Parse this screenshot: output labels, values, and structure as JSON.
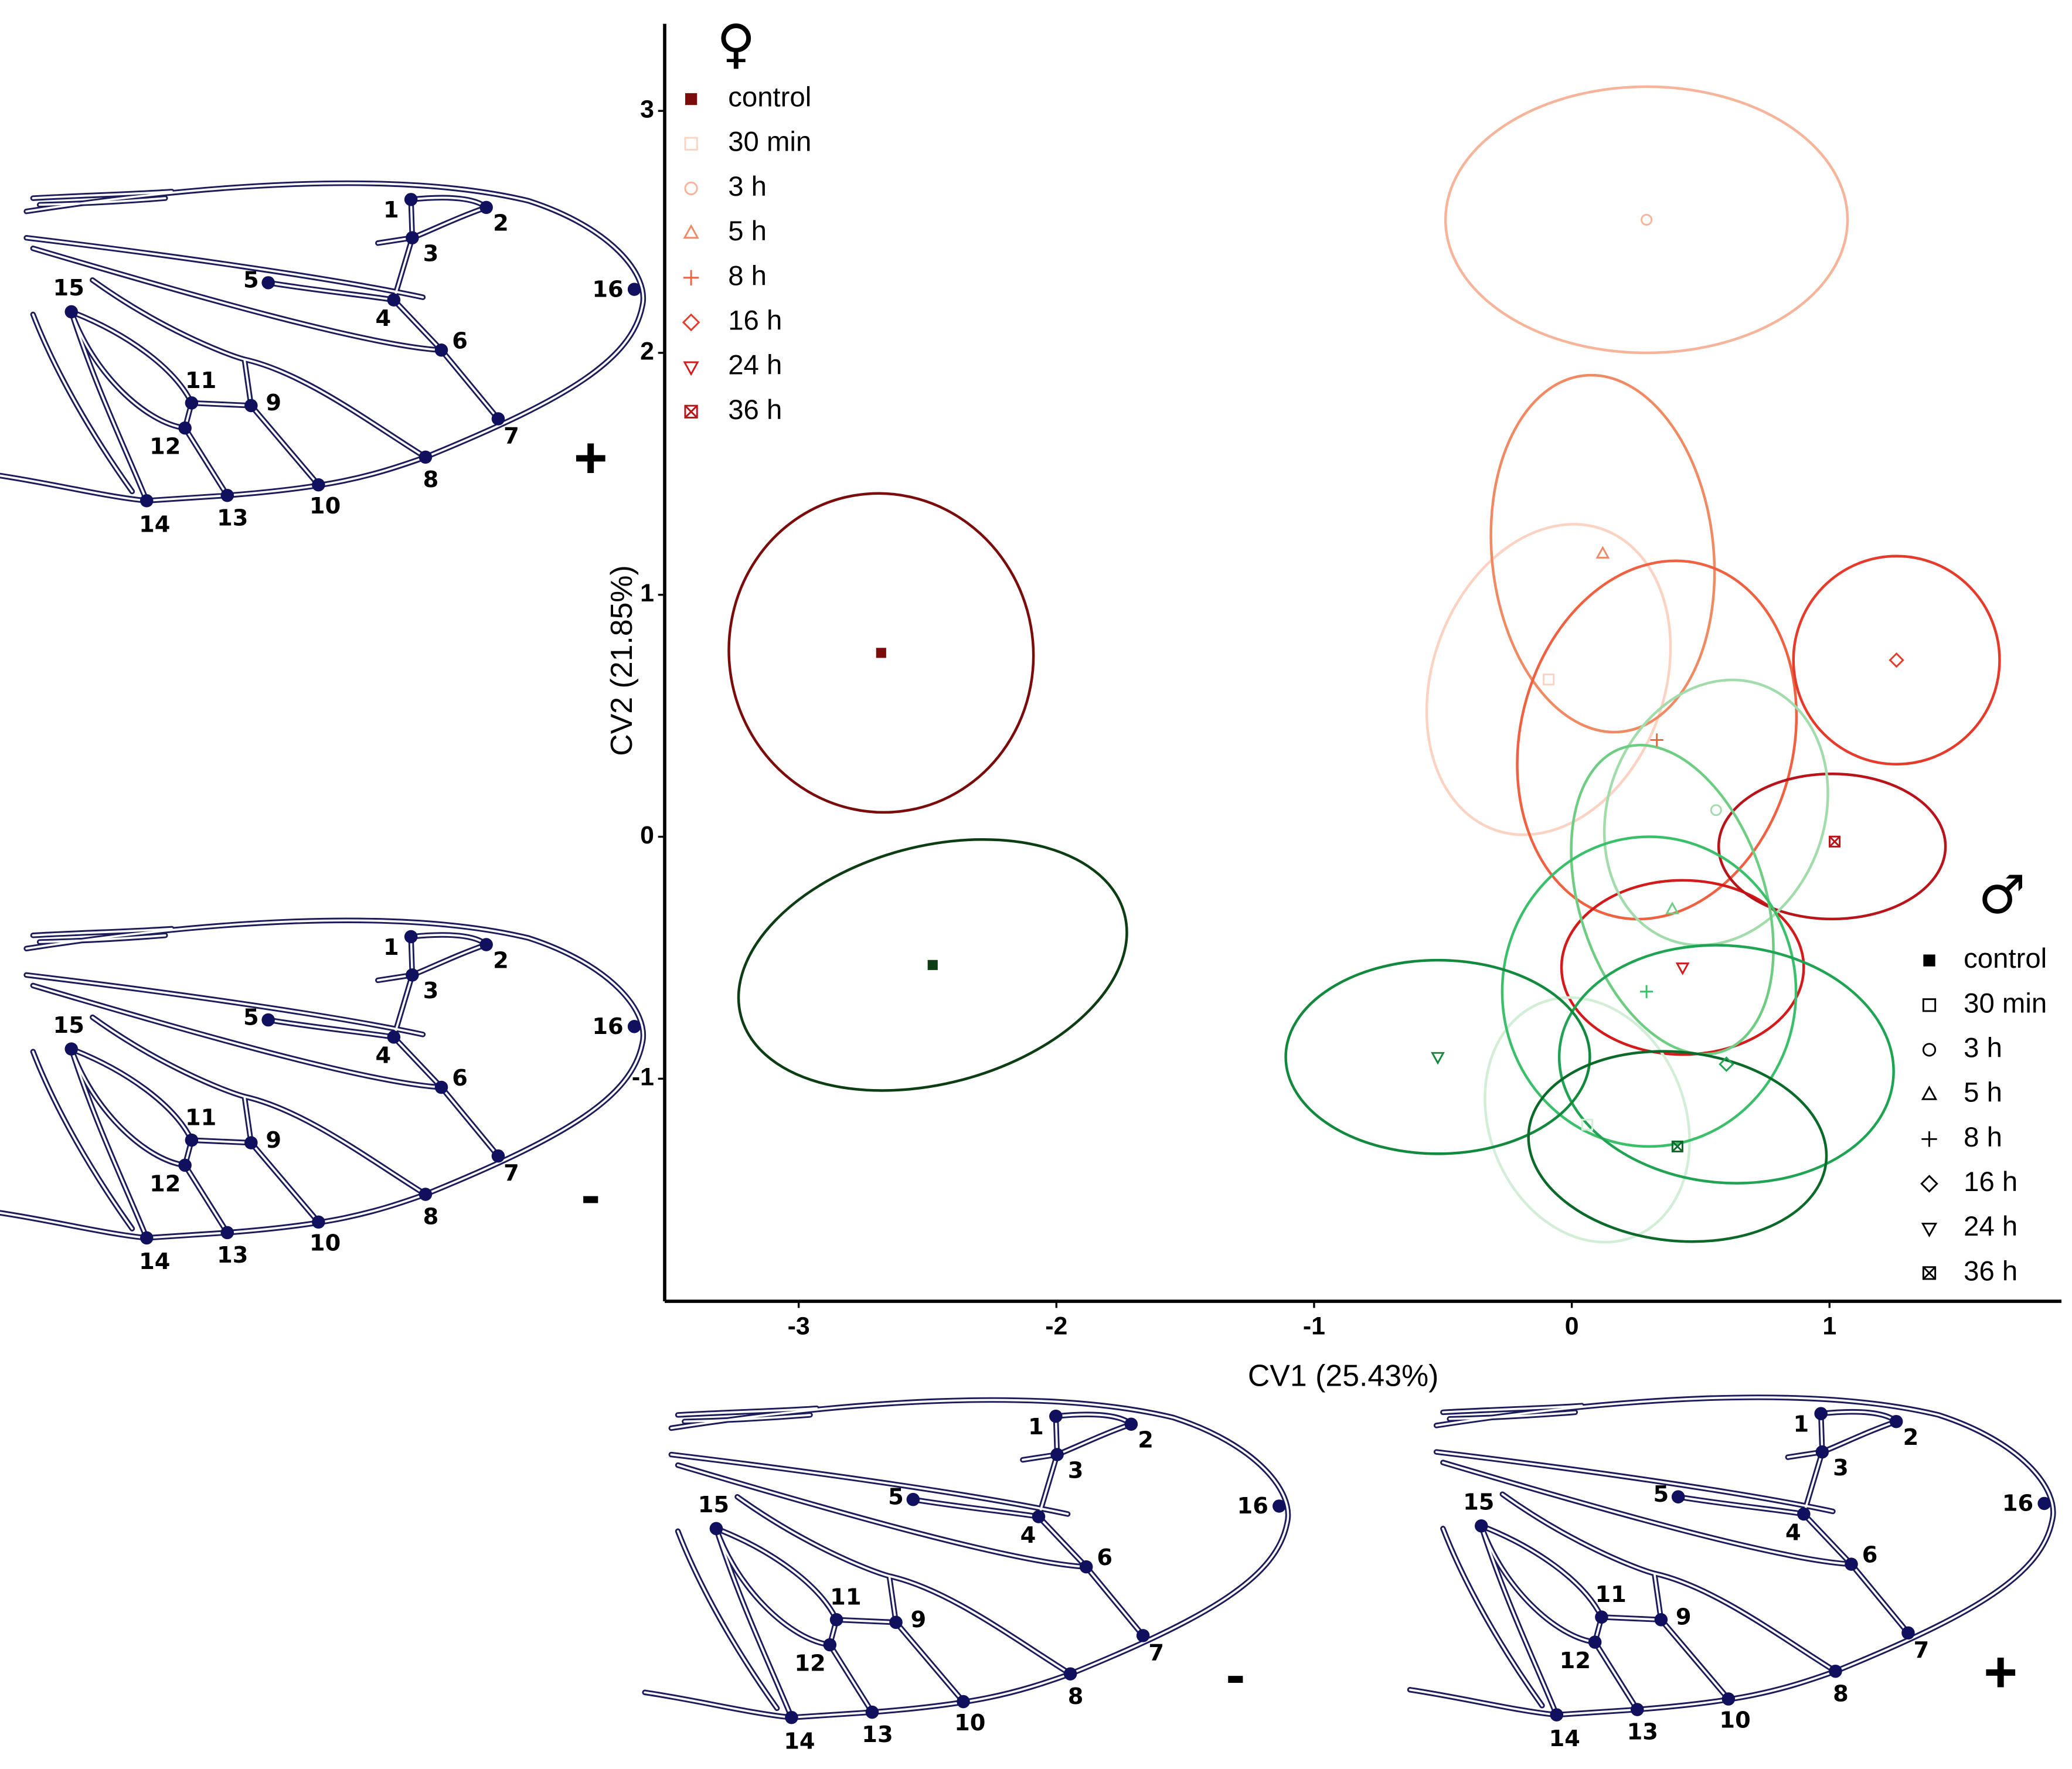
{
  "chart_data": {
    "type": "scatter",
    "x_label": "CV1 (25.43%)",
    "y_label": "CV2 (21.85%)",
    "xlim": [
      -3.52,
      1.9
    ],
    "ylim": [
      -1.92,
      3.36
    ],
    "xticks": [
      -3,
      -2,
      -1,
      0,
      1
    ],
    "yticks": [
      -1,
      0,
      1,
      2,
      3
    ],
    "legends": [
      {
        "title": "♀",
        "series": [
          {
            "name": "control",
            "color": "#7b0c0c",
            "marker": "square",
            "x": -2.68,
            "y": 0.76,
            "ellipse": {
              "cx": -2.68,
              "cy": 0.76,
              "rx": 0.59,
              "ry": 0.66,
              "angle": 10
            }
          },
          {
            "name": "30 min",
            "color": "#fcd3c2",
            "marker": "square-open",
            "x": -0.09,
            "y": 0.65,
            "ellipse": {
              "cx": -0.09,
              "cy": 0.65,
              "rx": 0.45,
              "ry": 0.66,
              "angle": -20
            }
          },
          {
            "name": "3 h",
            "color": "#f6b49a",
            "marker": "circle",
            "x": 0.29,
            "y": 2.55,
            "ellipse": {
              "cx": 0.29,
              "cy": 2.55,
              "rx": 0.78,
              "ry": 0.55,
              "angle": 0
            }
          },
          {
            "name": "5 h",
            "color": "#f08a62",
            "marker": "triangle",
            "x": 0.12,
            "y": 1.17,
            "ellipse": {
              "cx": 0.12,
              "cy": 1.17,
              "rx": 0.43,
              "ry": 0.74,
              "angle": 6
            }
          },
          {
            "name": "8 h",
            "color": "#ef6140",
            "marker": "plus",
            "x": 0.33,
            "y": 0.4,
            "ellipse": {
              "cx": 0.33,
              "cy": 0.4,
              "rx": 0.53,
              "ry": 0.75,
              "angle": -14
            }
          },
          {
            "name": "16 h",
            "color": "#e63b2a",
            "marker": "diamond",
            "x": 1.26,
            "y": 0.73,
            "ellipse": {
              "cx": 1.26,
              "cy": 0.73,
              "rx": 0.4,
              "ry": 0.43,
              "angle": 0
            }
          },
          {
            "name": "24 h",
            "color": "#d41b1b",
            "marker": "triangle-down",
            "x": 0.43,
            "y": -0.54,
            "ellipse": {
              "cx": 0.43,
              "cy": -0.54,
              "rx": 0.47,
              "ry": 0.36,
              "angle": 0
            }
          },
          {
            "name": "36 h",
            "color": "#b8141a",
            "marker": "square-x",
            "x": 1.02,
            "y": -0.02,
            "ellipse": {
              "cx": 1.01,
              "cy": -0.04,
              "rx": 0.44,
              "ry": 0.3,
              "angle": 0
            }
          }
        ]
      },
      {
        "title": "♂",
        "legend_color": "#000000",
        "series": [
          {
            "name": "control",
            "color": "#0c3d13",
            "marker": "square",
            "x": -2.48,
            "y": -0.53,
            "ellipse": {
              "cx": -2.48,
              "cy": -0.53,
              "rx": 0.77,
              "ry": 0.49,
              "angle": 15
            }
          },
          {
            "name": "30 min",
            "color": "#d3eed7",
            "marker": "square-open",
            "x": 0.06,
            "y": -1.19,
            "ellipse": {
              "cx": 0.06,
              "cy": -1.17,
              "rx": 0.38,
              "ry": 0.52,
              "angle": 22
            }
          },
          {
            "name": "3 h",
            "color": "#a3dcab",
            "marker": "circle",
            "x": 0.56,
            "y": 0.11,
            "ellipse": {
              "cx": 0.56,
              "cy": 0.1,
              "rx": 0.42,
              "ry": 0.56,
              "angle": -20
            }
          },
          {
            "name": "5 h",
            "color": "#6fcd83",
            "marker": "triangle",
            "x": 0.39,
            "y": -0.3,
            "ellipse": {
              "cx": 0.39,
              "cy": -0.26,
              "rx": 0.36,
              "ry": 0.66,
              "angle": 18
            }
          },
          {
            "name": "8 h",
            "color": "#3cbf6b",
            "marker": "plus",
            "x": 0.29,
            "y": -0.64,
            "ellipse": {
              "cx": 0.3,
              "cy": -0.64,
              "rx": 0.57,
              "ry": 0.64,
              "angle": 0
            }
          },
          {
            "name": "16 h",
            "color": "#21a354",
            "marker": "diamond",
            "x": 0.6,
            "y": -0.94,
            "ellipse": {
              "cx": 0.6,
              "cy": -0.94,
              "rx": 0.65,
              "ry": 0.49,
              "angle": -5
            }
          },
          {
            "name": "24 h",
            "color": "#12893d",
            "marker": "triangle-down",
            "x": -0.52,
            "y": -0.91,
            "ellipse": {
              "cx": -0.52,
              "cy": -0.91,
              "rx": 0.59,
              "ry": 0.4,
              "angle": 0
            }
          },
          {
            "name": "36 h",
            "color": "#0b6a2a",
            "marker": "square-x",
            "x": 0.41,
            "y": -1.28,
            "ellipse": {
              "cx": 0.41,
              "cy": -1.28,
              "rx": 0.58,
              "ry": 0.39,
              "angle": -6
            }
          }
        ]
      }
    ]
  },
  "wings": [
    {
      "sign": "+"
    },
    {
      "sign": "-"
    },
    {
      "sign": "-"
    },
    {
      "sign": "+"
    }
  ],
  "landmark_labels": [
    "1",
    "2",
    "3",
    "4",
    "5",
    "6",
    "7",
    "8",
    "9",
    "10",
    "11",
    "12",
    "13",
    "14",
    "15",
    "16"
  ]
}
